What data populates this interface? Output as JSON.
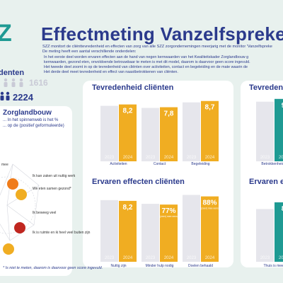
{
  "header": {
    "logo": "Z",
    "title": "Effectmeting Vanzelfspreke",
    "intro": "SZZ monitort de cliënttevredenheid en effecten van zorg van alle SZZ zorgondernemingen meerjarig met de monitor 'Vanzelfspreke",
    "subintro": "De meting heeft een aantal verschillende onderdelen:",
    "bullets": [
      "In het eerste deel worden ervaren effecten aan de hand van negen kernwaarden van het Kwaliteitskader Zorglandbouw g",
      "kernwaarden, gezond eten, onvoldoende betrouwbaar te meten is met dit model, daarom is daarvoor geen score ingevuld.",
      "Het tweede deel zoomt in op de tevredenheid van cliënten over activiteiten, contact en begeleiding en de mate waarin de",
      "Het derde deel meet tevredenheid en effect van naastbetrokkenen van cliënten."
    ]
  },
  "respondents": {
    "label": "denten",
    "counts": [
      1616,
      2224
    ]
  },
  "zorglandbouw": {
    "title": "Zorglandbouw",
    "lines": [
      "... In het spinnenweb is het %",
      "... op de (positief geformuleerde)"
    ],
    "items": [
      "mee",
      "Ik kan zaken uit nuttig werk",
      "We eten samen gezond*",
      "Ik beweeg veel",
      "Ik is ruimte en ik heel veel buiten zijn"
    ],
    "footnote": "* Is niet te meten, daarom is daarvoor geen score ingevuld."
  },
  "charts": [
    {
      "type": "bar",
      "title": "Tevredenheid cliënten",
      "categories": [
        "Activiteiten",
        "Contact",
        "Begeleiding"
      ],
      "ylim": [
        0,
        10
      ],
      "series": [
        {
          "name": "2023",
          "color": "#e6e6ec",
          "values": [
            8.0,
            7.7,
            8.5
          ]
        },
        {
          "name": "2024",
          "color": "#f0ad22",
          "values": [
            8.2,
            7.8,
            8.7
          ],
          "value_labels": [
            "8,2",
            "7,8",
            "8,7"
          ]
        }
      ]
    },
    {
      "type": "bar",
      "title": "Ervaren effecten cliënten",
      "categories": [
        "Nuttig zijn",
        "Minder hulp nodig",
        "Doelen behaald"
      ],
      "category_ylims": [
        [
          0,
          10
        ],
        [
          0,
          100
        ],
        [
          0,
          100
        ]
      ],
      "series": [
        {
          "name": "2023",
          "color": "#e6e6ec",
          "values": [
            8.3,
            78,
            90
          ]
        },
        {
          "name": "2024",
          "color": "#f0ad22",
          "values": [
            8.2,
            77,
            88
          ],
          "value_labels": [
            "8,2",
            "77%",
            "88%"
          ],
          "value_notes": [
            null,
            "(zeer) mee eens",
            "(zeer) mee eens"
          ]
        }
      ]
    },
    {
      "type": "bar",
      "title": "Tevredenh",
      "categories": [
        "Betrokkenheid b"
      ],
      "ylim": [
        0,
        10
      ],
      "series": [
        {
          "name": "2023",
          "color": "#e6e6ec",
          "values": [
            8.6
          ]
        },
        {
          "name": "2024",
          "color": "#1f9a93",
          "values": [
            9
          ]
        }
      ]
    },
    {
      "type": "bar",
      "title": "Ervaren eff",
      "categories": [
        "Thuis is meer"
      ],
      "ylim": [
        0,
        10
      ],
      "series": [
        {
          "name": "2023",
          "color": "#e6e6ec",
          "values": [
            7.1
          ]
        },
        {
          "name": "2024",
          "color": "#1f9a93",
          "values": [
            8
          ]
        }
      ]
    }
  ]
}
